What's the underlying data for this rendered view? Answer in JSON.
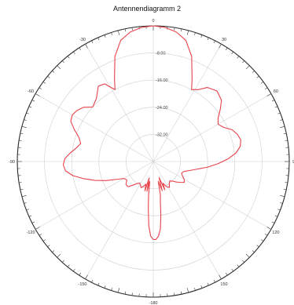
{
  "chart_data": {
    "type": "polar-line",
    "title": "Antennendiagramm 2",
    "angle_direction": "clockwise",
    "angle_zero": "top",
    "angle_labels": [
      "0",
      "30",
      "60",
      "90",
      "120",
      "150",
      "-180",
      "-150",
      "-120",
      "-90",
      "-60",
      "-30"
    ],
    "label_angles": [
      0,
      30,
      60,
      90,
      120,
      150,
      180,
      210,
      240,
      270,
      300,
      330
    ],
    "radial_range": [
      -40,
      0
    ],
    "ring_values": [
      -8,
      -16,
      -24,
      -32
    ],
    "ring_labels": [
      "-8.00",
      "-16.00",
      "-24.00",
      "-32.00"
    ],
    "grid": true,
    "series": [
      {
        "color": "#e8424a",
        "angles": [
          0,
          5,
          10,
          15,
          20,
          25,
          28,
          32,
          36,
          42,
          48,
          52,
          56,
          60,
          64,
          68,
          72,
          76,
          80,
          84,
          88,
          92,
          96,
          100,
          104,
          108,
          112,
          116,
          120,
          124,
          128,
          132,
          136,
          140,
          144,
          148,
          152,
          156,
          158,
          160,
          163,
          166,
          168,
          170,
          172,
          174,
          176,
          178,
          180,
          182,
          184,
          186,
          188,
          190,
          192,
          194,
          196,
          198,
          200,
          202,
          205,
          208,
          212,
          216,
          220,
          225,
          230,
          235,
          240,
          244,
          248,
          252,
          256,
          260,
          264,
          268,
          272,
          276,
          280,
          284,
          288,
          292,
          296,
          300,
          304,
          308,
          312,
          318,
          324,
          328,
          332,
          335,
          340,
          345,
          350,
          355
        ],
        "values": [
          0,
          -0.3,
          -1.2,
          -3,
          -7,
          -13,
          -16,
          -15,
          -13,
          -12,
          -13,
          -15,
          -17,
          -18,
          -17,
          -15,
          -14,
          -13.5,
          -14,
          -15.5,
          -18,
          -21,
          -24,
          -27,
          -29,
          -30.5,
          -31,
          -30.5,
          -29.5,
          -29,
          -30,
          -31,
          -32,
          -32.5,
          -32,
          -31,
          -31.5,
          -33,
          -31,
          -35,
          -31,
          -34,
          -30,
          -28,
          -24,
          -20,
          -18,
          -17,
          -17,
          -18,
          -21,
          -26,
          -30,
          -34,
          -31,
          -35,
          -31,
          -33,
          -32.5,
          -32,
          -31.5,
          -32,
          -32.5,
          -32,
          -31,
          -29.5,
          -29.5,
          -30.5,
          -30,
          -28,
          -25,
          -22,
          -19,
          -16,
          -14,
          -13.5,
          -14,
          -15.5,
          -17,
          -18,
          -17,
          -15,
          -13,
          -12.5,
          -13,
          -14,
          -16,
          -15,
          -12.5,
          -13,
          -16,
          -13,
          -7,
          -3,
          -1.2,
          -0.3
        ]
      }
    ]
  }
}
